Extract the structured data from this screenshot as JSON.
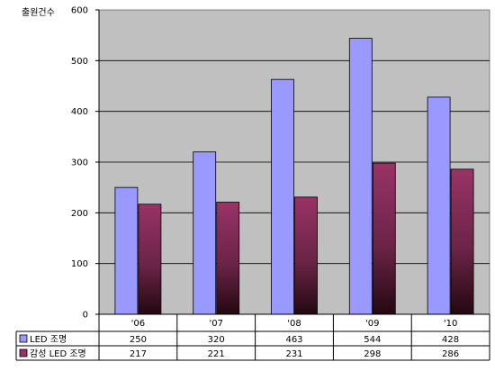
{
  "chart_data": {
    "type": "bar",
    "ylabel": "출원건수",
    "categories": [
      "'06",
      "'07",
      "'08",
      "'09",
      "'10"
    ],
    "series": [
      {
        "name": "LED 조명",
        "values": [
          250,
          320,
          463,
          544,
          428
        ],
        "color": "#9999ff"
      },
      {
        "name": "감성 LED 조명",
        "values": [
          217,
          221,
          231,
          298,
          286
        ],
        "color": "#993366"
      }
    ],
    "ylim": [
      0,
      600
    ],
    "yticks": [
      0,
      100,
      200,
      300,
      400,
      500,
      600
    ],
    "grid": true,
    "legend": "data-table",
    "plot_background": "#c0c0c0"
  }
}
